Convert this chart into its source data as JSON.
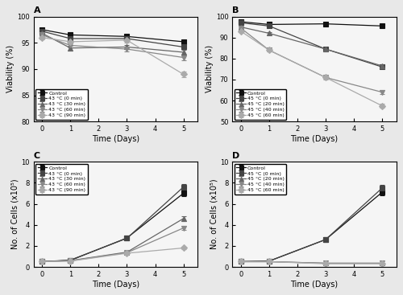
{
  "panel_A": {
    "title": "A",
    "xlabel": "Time (Days)",
    "ylabel": "Viability (%)",
    "ylim": [
      80,
      100
    ],
    "xlim": [
      -0.3,
      5.5
    ],
    "xticks": [
      0,
      1,
      2,
      3,
      4,
      5
    ],
    "yticks": [
      80,
      85,
      90,
      95,
      100
    ],
    "legend_loc": "lower left",
    "series": [
      {
        "label": "Control",
        "x": [
          0,
          1,
          3,
          5
        ],
        "y": [
          97.5,
          96.5,
          96.2,
          95.2
        ],
        "yerr": [
          0.25,
          0.35,
          0.4,
          0.35
        ],
        "marker": "s",
        "color": "#111111",
        "mfc": "#111111"
      },
      {
        "label": "43 °C (0 min)",
        "x": [
          0,
          1,
          3,
          5
        ],
        "y": [
          97.2,
          95.8,
          95.8,
          94.2
        ],
        "yerr": [
          0.25,
          0.4,
          0.35,
          0.4
        ],
        "marker": "s",
        "color": "#444444",
        "mfc": "#444444"
      },
      {
        "label": "43 °C (30 min)",
        "x": [
          0,
          1,
          3,
          5
        ],
        "y": [
          96.8,
          94.0,
          94.2,
          93.2
        ],
        "yerr": [
          0.3,
          0.45,
          0.4,
          0.45
        ],
        "marker": "^",
        "color": "#666666",
        "mfc": "#666666"
      },
      {
        "label": "43 °C (60 min)",
        "x": [
          0,
          1,
          3,
          5
        ],
        "y": [
          96.5,
          94.5,
          93.8,
          92.2
        ],
        "yerr": [
          0.3,
          0.4,
          0.45,
          0.5
        ],
        "marker": "v",
        "color": "#888888",
        "mfc": "#888888"
      },
      {
        "label": "43 °C (90 min)",
        "x": [
          0,
          1,
          3,
          5
        ],
        "y": [
          96.0,
          95.2,
          95.5,
          89.0
        ],
        "yerr": [
          0.3,
          0.4,
          0.4,
          0.6
        ],
        "marker": "D",
        "color": "#aaaaaa",
        "mfc": "#aaaaaa"
      }
    ]
  },
  "panel_B": {
    "title": "B",
    "xlabel": "Time (Days)",
    "ylabel": "Viability (%)",
    "ylim": [
      50,
      100
    ],
    "xlim": [
      -0.3,
      5.5
    ],
    "xticks": [
      0,
      1,
      2,
      3,
      4,
      5
    ],
    "yticks": [
      50,
      60,
      70,
      80,
      90,
      100
    ],
    "legend_loc": "lower left",
    "series": [
      {
        "label": "Control",
        "x": [
          0,
          1,
          3,
          5
        ],
        "y": [
          97.5,
          96.2,
          96.5,
          95.5
        ],
        "yerr": [
          0.25,
          0.35,
          0.35,
          0.35
        ],
        "marker": "s",
        "color": "#111111",
        "mfc": "#111111"
      },
      {
        "label": "45 °C (0 min)",
        "x": [
          0,
          1,
          3,
          5
        ],
        "y": [
          97.0,
          95.5,
          84.5,
          76.0
        ],
        "yerr": [
          0.3,
          0.45,
          0.55,
          0.65
        ],
        "marker": "s",
        "color": "#444444",
        "mfc": "#444444"
      },
      {
        "label": "45 °C (20 min)",
        "x": [
          0,
          1,
          3,
          5
        ],
        "y": [
          95.0,
          92.0,
          84.5,
          76.5
        ],
        "yerr": [
          0.4,
          0.55,
          0.65,
          0.75
        ],
        "marker": "^",
        "color": "#666666",
        "mfc": "#666666"
      },
      {
        "label": "45 °C (40 min)",
        "x": [
          0,
          1,
          3,
          5
        ],
        "y": [
          94.5,
          84.0,
          71.0,
          64.0
        ],
        "yerr": [
          0.4,
          0.65,
          0.75,
          0.85
        ],
        "marker": "v",
        "color": "#888888",
        "mfc": "#888888"
      },
      {
        "label": "45 °C (60 min)",
        "x": [
          0,
          1,
          3,
          5
        ],
        "y": [
          93.0,
          84.0,
          71.0,
          57.5
        ],
        "yerr": [
          0.45,
          0.65,
          0.85,
          1.0
        ],
        "marker": "D",
        "color": "#aaaaaa",
        "mfc": "#aaaaaa"
      }
    ]
  },
  "panel_C": {
    "title": "C",
    "xlabel": "Time (Days)",
    "ylabel": "No. of Cells (x10⁵)",
    "ylim": [
      0,
      10
    ],
    "xlim": [
      -0.3,
      5.5
    ],
    "xticks": [
      0,
      1,
      2,
      3,
      4,
      5
    ],
    "yticks": [
      0,
      2,
      4,
      6,
      8,
      10
    ],
    "legend_loc": "upper left",
    "series": [
      {
        "label": "Control",
        "x": [
          0,
          1,
          3,
          5
        ],
        "y": [
          0.5,
          0.62,
          2.75,
          7.0
        ],
        "yerr": [
          0.04,
          0.05,
          0.18,
          0.28
        ],
        "marker": "s",
        "color": "#111111",
        "mfc": "#111111"
      },
      {
        "label": "43 °C (0 min)",
        "x": [
          0,
          1,
          3,
          5
        ],
        "y": [
          0.5,
          0.65,
          2.72,
          7.6
        ],
        "yerr": [
          0.04,
          0.06,
          0.22,
          0.28
        ],
        "marker": "s",
        "color": "#444444",
        "mfc": "#444444"
      },
      {
        "label": "43 °C (30 min)",
        "x": [
          0,
          1,
          3,
          5
        ],
        "y": [
          0.5,
          0.6,
          1.4,
          4.6
        ],
        "yerr": [
          0.04,
          0.05,
          0.14,
          0.22
        ],
        "marker": "^",
        "color": "#666666",
        "mfc": "#666666"
      },
      {
        "label": "43 °C (60 min)",
        "x": [
          0,
          1,
          3,
          5
        ],
        "y": [
          0.5,
          0.58,
          1.35,
          3.7
        ],
        "yerr": [
          0.04,
          0.05,
          0.13,
          0.2
        ],
        "marker": "v",
        "color": "#888888",
        "mfc": "#888888"
      },
      {
        "label": "43 °C (90 min)",
        "x": [
          0,
          1,
          3,
          5
        ],
        "y": [
          0.5,
          0.55,
          1.3,
          1.8
        ],
        "yerr": [
          0.04,
          0.05,
          0.11,
          0.14
        ],
        "marker": "D",
        "color": "#aaaaaa",
        "mfc": "#aaaaaa"
      }
    ]
  },
  "panel_D": {
    "title": "D",
    "xlabel": "Time (Days)",
    "ylabel": "No. of Cells (x10⁵)",
    "ylim": [
      0,
      10
    ],
    "xlim": [
      -0.3,
      5.5
    ],
    "xticks": [
      0,
      1,
      2,
      3,
      4,
      5
    ],
    "yticks": [
      0,
      2,
      4,
      6,
      8,
      10
    ],
    "legend_loc": "upper left",
    "series": [
      {
        "label": "Control",
        "x": [
          0,
          1,
          3,
          5
        ],
        "y": [
          0.5,
          0.55,
          2.6,
          7.1
        ],
        "yerr": [
          0.04,
          0.05,
          0.18,
          0.28
        ],
        "marker": "s",
        "color": "#111111",
        "mfc": "#111111"
      },
      {
        "label": "45 °C (0 min)",
        "x": [
          0,
          1,
          3,
          5
        ],
        "y": [
          0.5,
          0.55,
          2.6,
          7.5
        ],
        "yerr": [
          0.04,
          0.05,
          0.22,
          0.32
        ],
        "marker": "s",
        "color": "#444444",
        "mfc": "#444444"
      },
      {
        "label": "45 °C (20 min)",
        "x": [
          0,
          1,
          3,
          5
        ],
        "y": [
          0.5,
          0.5,
          0.35,
          0.35
        ],
        "yerr": [
          0.04,
          0.04,
          0.04,
          0.04
        ],
        "marker": "^",
        "color": "#666666",
        "mfc": "#666666"
      },
      {
        "label": "45 °C (40 min)",
        "x": [
          0,
          1,
          3,
          5
        ],
        "y": [
          0.5,
          0.5,
          0.35,
          0.35
        ],
        "yerr": [
          0.04,
          0.04,
          0.04,
          0.04
        ],
        "marker": "v",
        "color": "#888888",
        "mfc": "#888888"
      },
      {
        "label": "45 °C (60 min)",
        "x": [
          0,
          1,
          3,
          5
        ],
        "y": [
          0.5,
          0.5,
          0.3,
          0.3
        ],
        "yerr": [
          0.04,
          0.04,
          0.04,
          0.04
        ],
        "marker": "D",
        "color": "#aaaaaa",
        "mfc": "#aaaaaa"
      }
    ]
  },
  "fig_bg": "#e8e8e8",
  "ax_bg": "#f5f5f5"
}
